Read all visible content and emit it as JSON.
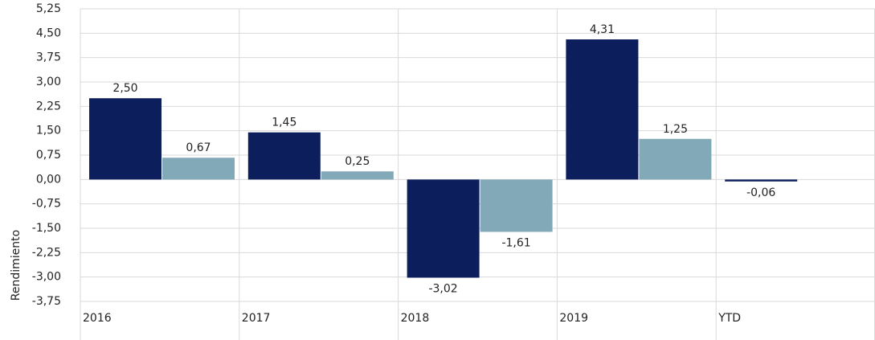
{
  "chart_data": {
    "type": "bar",
    "y_label": "Rendimiento",
    "categories": [
      "2016",
      "2017",
      "2018",
      "2019",
      "YTD"
    ],
    "series": [
      {
        "color": "#0c1f5c",
        "values": [
          2.5,
          1.45,
          -3.02,
          4.31,
          -0.06
        ],
        "value_labels": [
          "2,50",
          "1,45",
          "-3,02",
          "4,31",
          "-0,06"
        ]
      },
      {
        "color": "#81a9b8",
        "values": [
          0.67,
          0.25,
          -1.61,
          1.25,
          null
        ],
        "value_labels": [
          "0,67",
          "0,25",
          "-1,61",
          "1,25",
          null
        ]
      }
    ],
    "ylim": [
      -3.75,
      5.25
    ],
    "yticks": [
      {
        "value": -3.75,
        "label": "-3,75"
      },
      {
        "value": -3.0,
        "label": "-3,00"
      },
      {
        "value": -2.25,
        "label": "-2,25"
      },
      {
        "value": -1.5,
        "label": "-1,50"
      },
      {
        "value": -0.75,
        "label": "-0,75"
      },
      {
        "value": 0,
        "label": "0,00"
      },
      {
        "value": 0.75,
        "label": "0,75"
      },
      {
        "value": 1.5,
        "label": "1,50"
      },
      {
        "value": 2.25,
        "label": "2,25"
      },
      {
        "value": 3.0,
        "label": "3,00"
      },
      {
        "value": 3.75,
        "label": "3,75"
      },
      {
        "value": 4.5,
        "label": "4,50"
      },
      {
        "value": 5.25,
        "label": "5,25"
      }
    ],
    "grid": true
  }
}
